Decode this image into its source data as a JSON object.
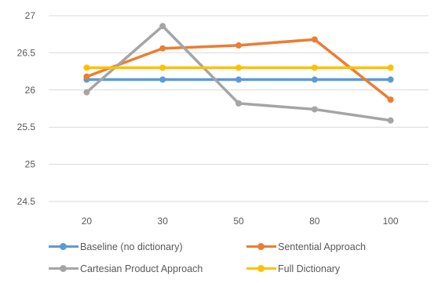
{
  "chart_data": {
    "type": "line",
    "categories": [
      "20",
      "30",
      "50",
      "80",
      "100"
    ],
    "ylim": [
      24.5,
      27
    ],
    "yticks": [
      "24.5",
      "25",
      "25.5",
      "26",
      "26.5",
      "27"
    ],
    "grid": true,
    "legend_position": "bottom",
    "series": [
      {
        "name": "Baseline (no dictionary)",
        "color": "#5b9bd5",
        "values": [
          26.14,
          26.14,
          26.14,
          26.14,
          26.14
        ]
      },
      {
        "name": "Sentential Approach",
        "color": "#ed7d31",
        "values": [
          26.18,
          26.56,
          26.6,
          26.68,
          25.87
        ]
      },
      {
        "name": "Cartesian Product Approach",
        "color": "#a5a5a5",
        "values": [
          25.97,
          26.86,
          25.82,
          25.74,
          25.59
        ]
      },
      {
        "name": "Full Dictionary",
        "color": "#ffc000",
        "values": [
          26.3,
          26.3,
          26.3,
          26.3,
          26.3
        ]
      }
    ]
  }
}
